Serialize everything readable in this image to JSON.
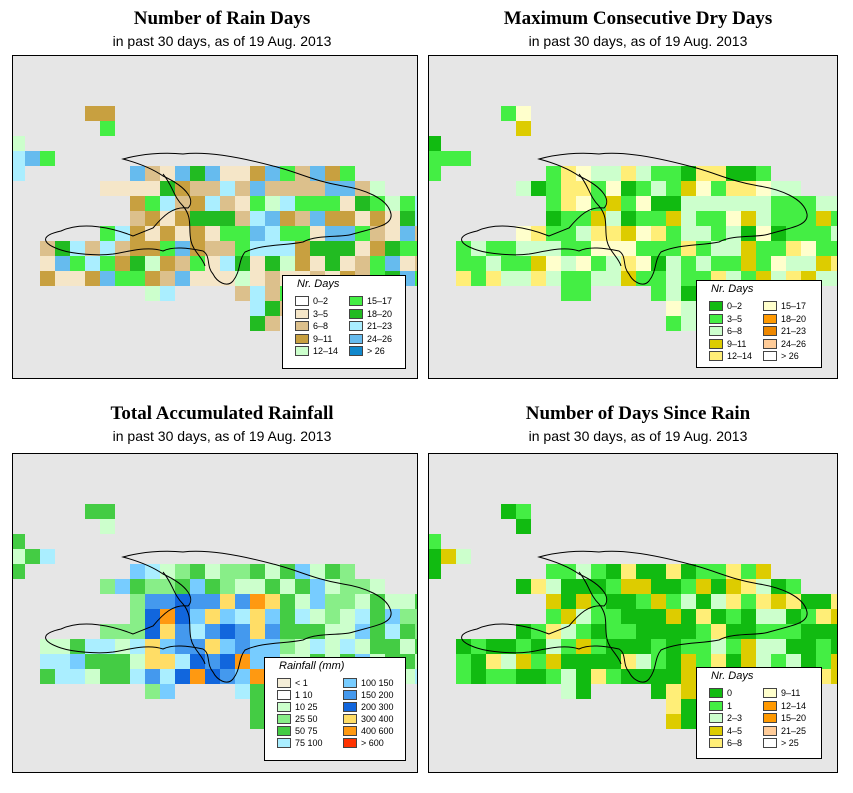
{
  "panels": [
    {
      "id": "rain-days",
      "title": "Number of Rain Days",
      "subtitle": "in past 30 days, as of  19 Aug. 2013",
      "legend_title": "Nr. Days",
      "legend": [
        {
          "label": "0–2",
          "color": "#ffffff"
        },
        {
          "label": "3–5",
          "color": "#f5e6c8"
        },
        {
          "label": "6–8",
          "color": "#dcc08c"
        },
        {
          "label": "9–11",
          "color": "#c8a040"
        },
        {
          "label": "12–14",
          "color": "#ccffcc"
        },
        {
          "label": "15–17",
          "color": "#44ee44"
        },
        {
          "label": "18–20",
          "color": "#22bb22"
        },
        {
          "label": "21–23",
          "color": "#aaeeff"
        },
        {
          "label": "24–26",
          "color": "#66bbee"
        },
        {
          "label": "> 26",
          "color": "#1188cc"
        }
      ]
    },
    {
      "id": "max-dry-days",
      "title": "Maximum Consecutive Dry Days",
      "subtitle": "in past 30 days, as of  19 Aug. 2013",
      "legend_title": "Nr. Days",
      "legend": [
        {
          "label": "0–2",
          "color": "#11bb11"
        },
        {
          "label": "3–5",
          "color": "#44ee44"
        },
        {
          "label": "6–8",
          "color": "#ccffcc"
        },
        {
          "label": "9–11",
          "color": "#ddcc00"
        },
        {
          "label": "12–14",
          "color": "#ffee77"
        },
        {
          "label": "15–17",
          "color": "#ffffcc"
        },
        {
          "label": "18–20",
          "color": "#ff9900"
        },
        {
          "label": "21–23",
          "color": "#ee8800"
        },
        {
          "label": "24–26",
          "color": "#ffcc99"
        },
        {
          "label": "> 26",
          "color": "#ffffff"
        }
      ]
    },
    {
      "id": "total-rainfall",
      "title": "Total Accumulated Rainfall",
      "subtitle": "in past 30 days, as of  19 Aug. 2013",
      "legend_title": "Rainfall (mm)",
      "legend": [
        {
          "label": "< 1",
          "color": "#f5eed8"
        },
        {
          "label": "1    10",
          "color": "#ffffff"
        },
        {
          "label": "10    25",
          "color": "#ccffcc"
        },
        {
          "label": "25    50",
          "color": "#88ee88"
        },
        {
          "label": "50    75",
          "color": "#44cc44"
        },
        {
          "label": "75  100",
          "color": "#aaeeff"
        },
        {
          "label": "100  150",
          "color": "#77ccff"
        },
        {
          "label": "150  200",
          "color": "#4499ee"
        },
        {
          "label": "200  300",
          "color": "#1166dd"
        },
        {
          "label": "300  400",
          "color": "#ffdd66"
        },
        {
          "label": "400  600",
          "color": "#ff9911"
        },
        {
          "label": "> 600",
          "color": "#ff3300"
        }
      ]
    },
    {
      "id": "days-since-rain",
      "title": "Number of Days Since Rain",
      "subtitle": "in past 30 days, as of  19 Aug. 2013",
      "legend_title": "Nr. Days",
      "legend": [
        {
          "label": "0",
          "color": "#11bb11"
        },
        {
          "label": "1",
          "color": "#44ee44"
        },
        {
          "label": "2–3",
          "color": "#ccffcc"
        },
        {
          "label": "4–5",
          "color": "#ddcc00"
        },
        {
          "label": "6–8",
          "color": "#ffee77"
        },
        {
          "label": "9–11",
          "color": "#ffffcc"
        },
        {
          "label": "12–14",
          "color": "#ff9900"
        },
        {
          "label": "15–20",
          "color": "#ff9900"
        },
        {
          "label": "21–25",
          "color": "#ffcc99"
        },
        {
          "label": "> 25",
          "color": "#ffffff"
        }
      ]
    }
  ]
}
